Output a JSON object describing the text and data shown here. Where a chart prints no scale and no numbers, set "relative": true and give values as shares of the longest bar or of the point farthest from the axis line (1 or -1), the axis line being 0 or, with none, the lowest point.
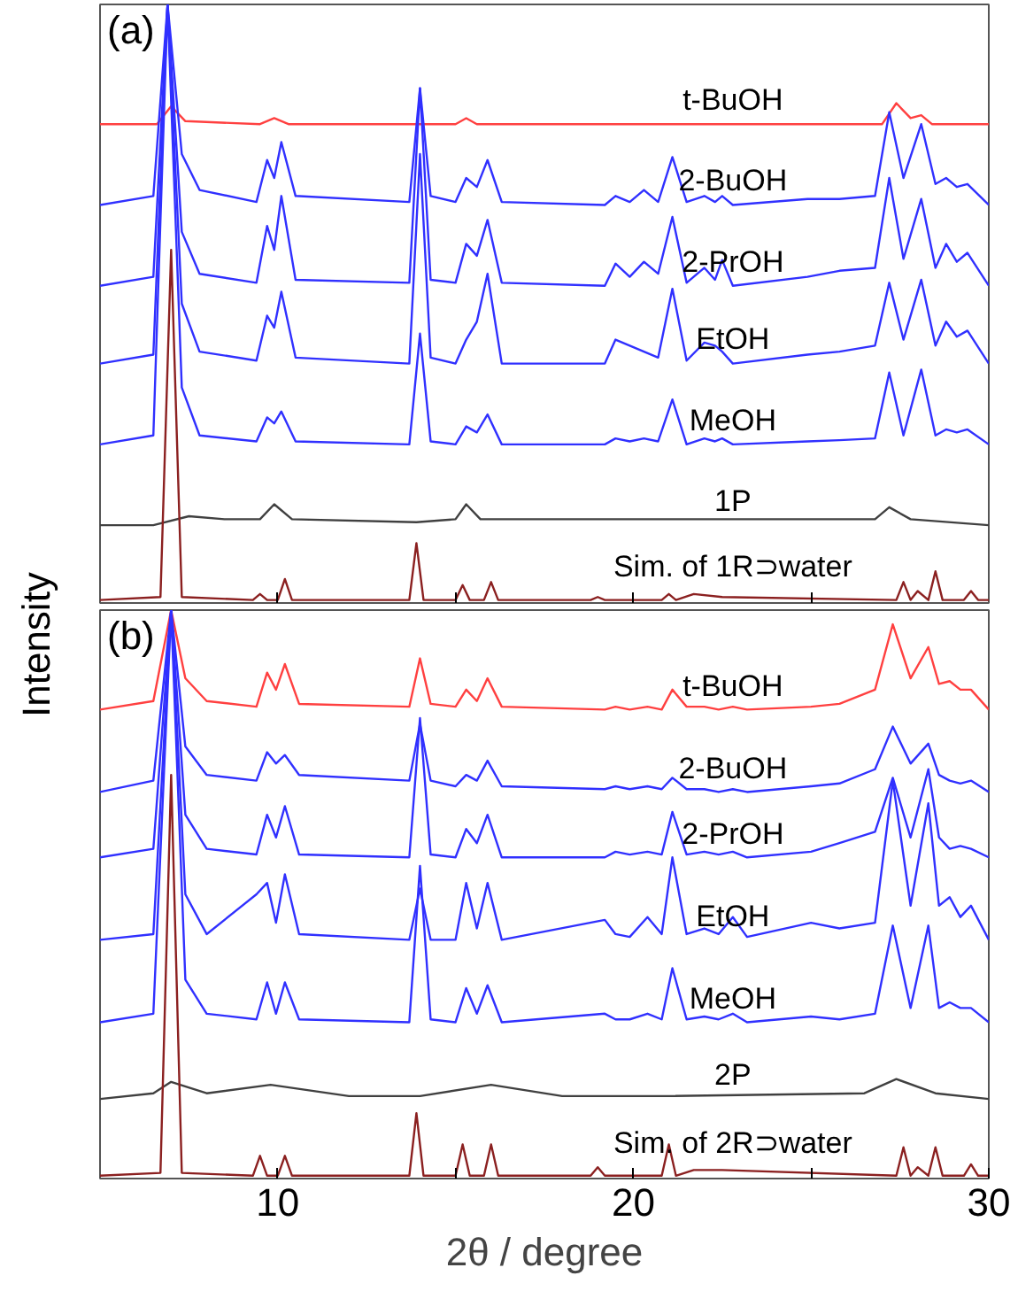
{
  "chart_data": [
    {
      "type": "line",
      "title": "(a)",
      "ylabel": "Intensity",
      "relative": true,
      "xlim": [
        5,
        30
      ],
      "xticks": [
        {
          "value": 10,
          "label": null
        },
        {
          "value": 15,
          "label": null
        },
        {
          "value": 20,
          "label": null
        },
        {
          "value": 25,
          "label": null
        }
      ],
      "tick_labels": false,
      "grid": false,
      "series": [
        {
          "name": "t-BuOH",
          "color": "#ff4040",
          "x": [
            5,
            6.6,
            7.0,
            7.4,
            9.5,
            9.9,
            10.3,
            15.0,
            15.3,
            15.6,
            27.0,
            27.4,
            27.8,
            28.1,
            28.4,
            30
          ],
          "values": [
            0.8,
            0.8,
            0.83,
            0.805,
            0.8,
            0.81,
            0.8,
            0.8,
            0.81,
            0.8,
            0.8,
            0.835,
            0.81,
            0.815,
            0.8,
            0.8
          ]
        },
        {
          "name": "2-BuOH",
          "color": "#3030ff",
          "x": [
            5,
            6.5,
            6.9,
            7.3,
            7.8,
            9.4,
            9.7,
            9.9,
            10.1,
            10.5,
            13.7,
            14.0,
            14.3,
            15.0,
            15.3,
            15.6,
            15.9,
            16.3,
            19.2,
            19.5,
            19.9,
            20.3,
            20.7,
            21.1,
            21.5,
            22.0,
            22.3,
            22.5,
            22.8,
            24.9,
            25.8,
            26.8,
            27.2,
            27.6,
            28.1,
            28.5,
            28.8,
            29.1,
            29.4,
            30
          ],
          "values": [
            0.665,
            0.68,
            1.0,
            0.75,
            0.69,
            0.67,
            0.74,
            0.71,
            0.77,
            0.68,
            0.67,
            0.86,
            0.68,
            0.67,
            0.71,
            0.695,
            0.74,
            0.67,
            0.665,
            0.68,
            0.67,
            0.69,
            0.67,
            0.745,
            0.67,
            0.68,
            0.67,
            0.68,
            0.665,
            0.675,
            0.675,
            0.68,
            0.82,
            0.71,
            0.8,
            0.7,
            0.71,
            0.695,
            0.7,
            0.665
          ]
        },
        {
          "name": "2-PrOH",
          "color": "#3030ff",
          "x": [
            5,
            6.5,
            6.9,
            7.3,
            7.8,
            9.4,
            9.7,
            9.9,
            10.1,
            10.5,
            13.7,
            14.0,
            14.3,
            15.0,
            15.3,
            15.6,
            15.9,
            16.3,
            19.2,
            19.5,
            19.9,
            20.3,
            20.7,
            21.1,
            21.5,
            22.0,
            22.3,
            22.5,
            22.8,
            24.9,
            25.8,
            26.8,
            27.2,
            27.6,
            28.1,
            28.5,
            28.8,
            29.1,
            29.4,
            30
          ],
          "values": [
            0.53,
            0.545,
            1.0,
            0.62,
            0.55,
            0.535,
            0.63,
            0.59,
            0.68,
            0.54,
            0.535,
            0.86,
            0.54,
            0.535,
            0.6,
            0.58,
            0.64,
            0.535,
            0.53,
            0.567,
            0.545,
            0.57,
            0.55,
            0.645,
            0.535,
            0.56,
            0.54,
            0.573,
            0.53,
            0.545,
            0.555,
            0.56,
            0.71,
            0.575,
            0.675,
            0.56,
            0.6,
            0.57,
            0.585,
            0.53
          ]
        },
        {
          "name": "EtOH",
          "color": "#3030ff",
          "x": [
            5,
            6.5,
            6.9,
            7.3,
            7.8,
            9.4,
            9.7,
            9.9,
            10.1,
            10.5,
            13.7,
            14.0,
            14.3,
            15.0,
            15.3,
            15.6,
            15.9,
            16.3,
            19.2,
            19.5,
            19.9,
            20.3,
            20.7,
            21.1,
            21.5,
            22.0,
            22.3,
            22.5,
            22.8,
            24.9,
            25.8,
            26.8,
            27.2,
            27.6,
            28.1,
            28.5,
            28.8,
            29.1,
            29.4,
            30
          ],
          "values": [
            0.4,
            0.415,
            1.0,
            0.5,
            0.42,
            0.405,
            0.48,
            0.46,
            0.52,
            0.41,
            0.4,
            0.75,
            0.41,
            0.4,
            0.44,
            0.47,
            0.55,
            0.4,
            0.4,
            0.44,
            0.43,
            0.42,
            0.41,
            0.525,
            0.405,
            0.435,
            0.43,
            0.42,
            0.4,
            0.415,
            0.42,
            0.43,
            0.535,
            0.44,
            0.54,
            0.43,
            0.47,
            0.445,
            0.455,
            0.4
          ]
        },
        {
          "name": "MeOH",
          "color": "#3030ff",
          "x": [
            5,
            6.5,
            6.9,
            7.3,
            7.8,
            9.4,
            9.7,
            9.9,
            10.1,
            10.5,
            13.7,
            14.0,
            14.3,
            15.0,
            15.3,
            15.6,
            15.9,
            16.3,
            19.2,
            19.5,
            19.9,
            20.3,
            20.7,
            21.1,
            21.5,
            22.0,
            22.3,
            22.5,
            22.8,
            24.9,
            25.8,
            26.8,
            27.2,
            27.6,
            28.1,
            28.5,
            28.8,
            29.1,
            29.4,
            30
          ],
          "values": [
            0.265,
            0.28,
            1.0,
            0.36,
            0.28,
            0.27,
            0.31,
            0.3,
            0.32,
            0.27,
            0.265,
            0.45,
            0.27,
            0.265,
            0.295,
            0.285,
            0.315,
            0.265,
            0.265,
            0.275,
            0.27,
            0.275,
            0.27,
            0.34,
            0.265,
            0.275,
            0.27,
            0.275,
            0.265,
            0.27,
            0.272,
            0.275,
            0.385,
            0.28,
            0.39,
            0.28,
            0.29,
            0.285,
            0.29,
            0.265
          ]
        },
        {
          "name": "1P",
          "color": "#404040",
          "x": [
            5,
            6.5,
            7.5,
            8.5,
            9.5,
            9.9,
            10.4,
            13.9,
            15.0,
            15.3,
            15.7,
            21.3,
            26.8,
            27.2,
            27.8,
            30
          ],
          "values": [
            0.13,
            0.13,
            0.145,
            0.14,
            0.14,
            0.165,
            0.14,
            0.135,
            0.14,
            0.165,
            0.14,
            0.14,
            0.14,
            0.16,
            0.14,
            0.13
          ]
        },
        {
          "name": "Sim. of 1R⊃water",
          "color": "#8b2020",
          "x": [
            5,
            6.7,
            7.0,
            7.3,
            9.3,
            9.5,
            9.7,
            10.0,
            10.2,
            10.4,
            13.7,
            13.9,
            14.1,
            15.0,
            15.2,
            15.4,
            15.8,
            16.0,
            16.2,
            18.8,
            19.0,
            19.2,
            20.8,
            21.0,
            21.2,
            21.7,
            22.5,
            27.4,
            27.6,
            27.8,
            28.0,
            28.3,
            28.5,
            28.7,
            29.3,
            29.5,
            29.7,
            30
          ],
          "values": [
            0.005,
            0.01,
            0.59,
            0.01,
            0.005,
            0.015,
            0.005,
            0.005,
            0.04,
            0.005,
            0.005,
            0.1,
            0.005,
            0.005,
            0.03,
            0.005,
            0.005,
            0.035,
            0.005,
            0.005,
            0.01,
            0.005,
            0.005,
            0.015,
            0.005,
            0.015,
            0.01,
            0.005,
            0.035,
            0.005,
            0.02,
            0.005,
            0.053,
            0.005,
            0.005,
            0.02,
            0.005,
            0.005
          ]
        }
      ]
    },
    {
      "type": "line",
      "title": "(b)",
      "xlabel": "2θ / degree",
      "relative": true,
      "xlim": [
        5,
        30
      ],
      "xticks": [
        10,
        {
          "value": 15,
          "label": null
        },
        20,
        {
          "value": 25,
          "label": null
        },
        30
      ],
      "tick_labels": "x",
      "grid": false,
      "series": [
        {
          "name": "t-BuOH",
          "color": "#ff4040",
          "x": [
            5,
            6.5,
            7.0,
            7.4,
            8.0,
            9.4,
            9.7,
            9.95,
            10.2,
            10.6,
            13.7,
            14.0,
            14.3,
            15.0,
            15.3,
            15.6,
            15.9,
            16.3,
            19.2,
            19.5,
            19.9,
            20.4,
            20.8,
            21.1,
            21.5,
            22.0,
            22.4,
            22.8,
            23.2,
            25.0,
            25.8,
            26.8,
            27.3,
            27.8,
            28.3,
            28.6,
            28.9,
            29.2,
            29.5,
            30
          ],
          "values": [
            0.825,
            0.84,
            1.0,
            0.88,
            0.84,
            0.83,
            0.89,
            0.86,
            0.905,
            0.835,
            0.83,
            0.915,
            0.835,
            0.83,
            0.86,
            0.84,
            0.88,
            0.83,
            0.825,
            0.83,
            0.825,
            0.83,
            0.825,
            0.86,
            0.83,
            0.83,
            0.825,
            0.83,
            0.825,
            0.83,
            0.835,
            0.86,
            0.975,
            0.88,
            0.935,
            0.87,
            0.875,
            0.86,
            0.86,
            0.825
          ]
        },
        {
          "name": "2-BuOH",
          "color": "#3030ff",
          "x": [
            5,
            6.5,
            7.0,
            7.4,
            8.0,
            9.4,
            9.7,
            9.95,
            10.2,
            10.6,
            13.7,
            14.0,
            14.3,
            15.0,
            15.3,
            15.6,
            15.9,
            16.3,
            19.2,
            19.5,
            19.9,
            20.4,
            20.8,
            21.1,
            21.5,
            22.0,
            22.4,
            22.8,
            23.2,
            25.0,
            25.8,
            26.8,
            27.3,
            27.8,
            28.3,
            28.6,
            28.9,
            29.2,
            29.5,
            30
          ],
          "values": [
            0.68,
            0.7,
            1.0,
            0.76,
            0.71,
            0.7,
            0.75,
            0.73,
            0.745,
            0.71,
            0.7,
            0.8,
            0.7,
            0.69,
            0.71,
            0.7,
            0.735,
            0.69,
            0.685,
            0.69,
            0.685,
            0.69,
            0.685,
            0.705,
            0.685,
            0.685,
            0.68,
            0.685,
            0.68,
            0.69,
            0.695,
            0.72,
            0.795,
            0.73,
            0.765,
            0.71,
            0.7,
            0.695,
            0.7,
            0.68
          ]
        },
        {
          "name": "2-PrOH",
          "color": "#3030ff",
          "x": [
            5,
            6.5,
            7.0,
            7.4,
            8.0,
            9.4,
            9.7,
            9.95,
            10.2,
            10.6,
            13.7,
            14.0,
            14.3,
            15.0,
            15.3,
            15.6,
            15.9,
            16.3,
            19.2,
            19.5,
            19.9,
            20.4,
            20.8,
            21.1,
            21.5,
            22.0,
            22.4,
            22.8,
            23.2,
            25.0,
            25.8,
            26.8,
            27.3,
            27.8,
            28.3,
            28.6,
            28.9,
            29.2,
            29.5,
            30
          ],
          "values": [
            0.565,
            0.58,
            1.0,
            0.64,
            0.58,
            0.57,
            0.64,
            0.6,
            0.655,
            0.57,
            0.565,
            0.81,
            0.57,
            0.565,
            0.615,
            0.59,
            0.64,
            0.565,
            0.565,
            0.575,
            0.57,
            0.575,
            0.57,
            0.645,
            0.57,
            0.575,
            0.57,
            0.575,
            0.565,
            0.575,
            0.59,
            0.61,
            0.705,
            0.6,
            0.72,
            0.6,
            0.58,
            0.585,
            0.58,
            0.565
          ]
        },
        {
          "name": "EtOH",
          "color": "#3030ff",
          "x": [
            5,
            6.5,
            7.0,
            7.4,
            8.0,
            9.4,
            9.7,
            9.95,
            10.2,
            10.6,
            13.7,
            14.0,
            14.3,
            15.0,
            15.3,
            15.6,
            15.9,
            16.3,
            19.2,
            19.5,
            19.9,
            20.4,
            20.8,
            21.1,
            21.5,
            22.0,
            22.4,
            22.8,
            23.2,
            25.0,
            25.8,
            26.8,
            27.3,
            27.8,
            28.3,
            28.6,
            28.9,
            29.2,
            29.5,
            30
          ],
          "values": [
            0.42,
            0.43,
            1.0,
            0.5,
            0.43,
            0.5,
            0.52,
            0.45,
            0.535,
            0.43,
            0.42,
            0.51,
            0.42,
            0.42,
            0.52,
            0.44,
            0.52,
            0.42,
            0.455,
            0.43,
            0.425,
            0.46,
            0.43,
            0.565,
            0.43,
            0.44,
            0.43,
            0.46,
            0.425,
            0.45,
            0.44,
            0.45,
            0.7,
            0.48,
            0.66,
            0.48,
            0.495,
            0.46,
            0.48,
            0.42
          ]
        },
        {
          "name": "MeOH",
          "color": "#3030ff",
          "x": [
            5,
            6.5,
            7.0,
            7.4,
            8.0,
            9.4,
            9.7,
            9.95,
            10.2,
            10.6,
            13.7,
            14.0,
            14.3,
            15.0,
            15.3,
            15.6,
            15.9,
            16.3,
            19.2,
            19.5,
            19.9,
            20.4,
            20.8,
            21.1,
            21.5,
            22.0,
            22.4,
            22.8,
            23.2,
            25.0,
            25.8,
            26.8,
            27.3,
            27.8,
            28.3,
            28.6,
            28.9,
            29.2,
            29.5,
            30
          ],
          "values": [
            0.275,
            0.29,
            1.0,
            0.35,
            0.29,
            0.28,
            0.345,
            0.29,
            0.345,
            0.28,
            0.275,
            0.55,
            0.28,
            0.275,
            0.335,
            0.29,
            0.34,
            0.275,
            0.29,
            0.28,
            0.28,
            0.29,
            0.28,
            0.37,
            0.28,
            0.285,
            0.28,
            0.29,
            0.275,
            0.285,
            0.28,
            0.29,
            0.445,
            0.3,
            0.445,
            0.3,
            0.31,
            0.3,
            0.3,
            0.275
          ]
        },
        {
          "name": "2P",
          "color": "#404040",
          "x": [
            5,
            6.5,
            7.0,
            8.0,
            9.8,
            12,
            14.0,
            16.0,
            18,
            21.0,
            26.5,
            27.4,
            28.5,
            30
          ],
          "values": [
            0.14,
            0.15,
            0.17,
            0.15,
            0.165,
            0.145,
            0.145,
            0.165,
            0.145,
            0.145,
            0.15,
            0.175,
            0.15,
            0.14
          ]
        },
        {
          "name": "Sim. of 2R⊃water",
          "color": "#8b2020",
          "x": [
            5,
            6.7,
            7.0,
            7.3,
            9.3,
            9.5,
            9.7,
            10.0,
            10.2,
            10.4,
            13.7,
            13.9,
            14.1,
            15.0,
            15.2,
            15.4,
            15.8,
            16.0,
            16.2,
            18.8,
            19.0,
            19.2,
            20.8,
            21.0,
            21.2,
            21.7,
            22.5,
            27.4,
            27.6,
            27.8,
            28.0,
            28.3,
            28.5,
            28.7,
            29.3,
            29.5,
            29.7,
            30
          ],
          "values": [
            0.005,
            0.01,
            0.71,
            0.01,
            0.005,
            0.04,
            0.005,
            0.005,
            0.04,
            0.005,
            0.005,
            0.115,
            0.005,
            0.005,
            0.06,
            0.005,
            0.005,
            0.06,
            0.005,
            0.005,
            0.02,
            0.005,
            0.005,
            0.06,
            0.005,
            0.015,
            0.015,
            0.005,
            0.055,
            0.005,
            0.02,
            0.005,
            0.055,
            0.005,
            0.005,
            0.025,
            0.005,
            0.005
          ]
        }
      ]
    }
  ]
}
